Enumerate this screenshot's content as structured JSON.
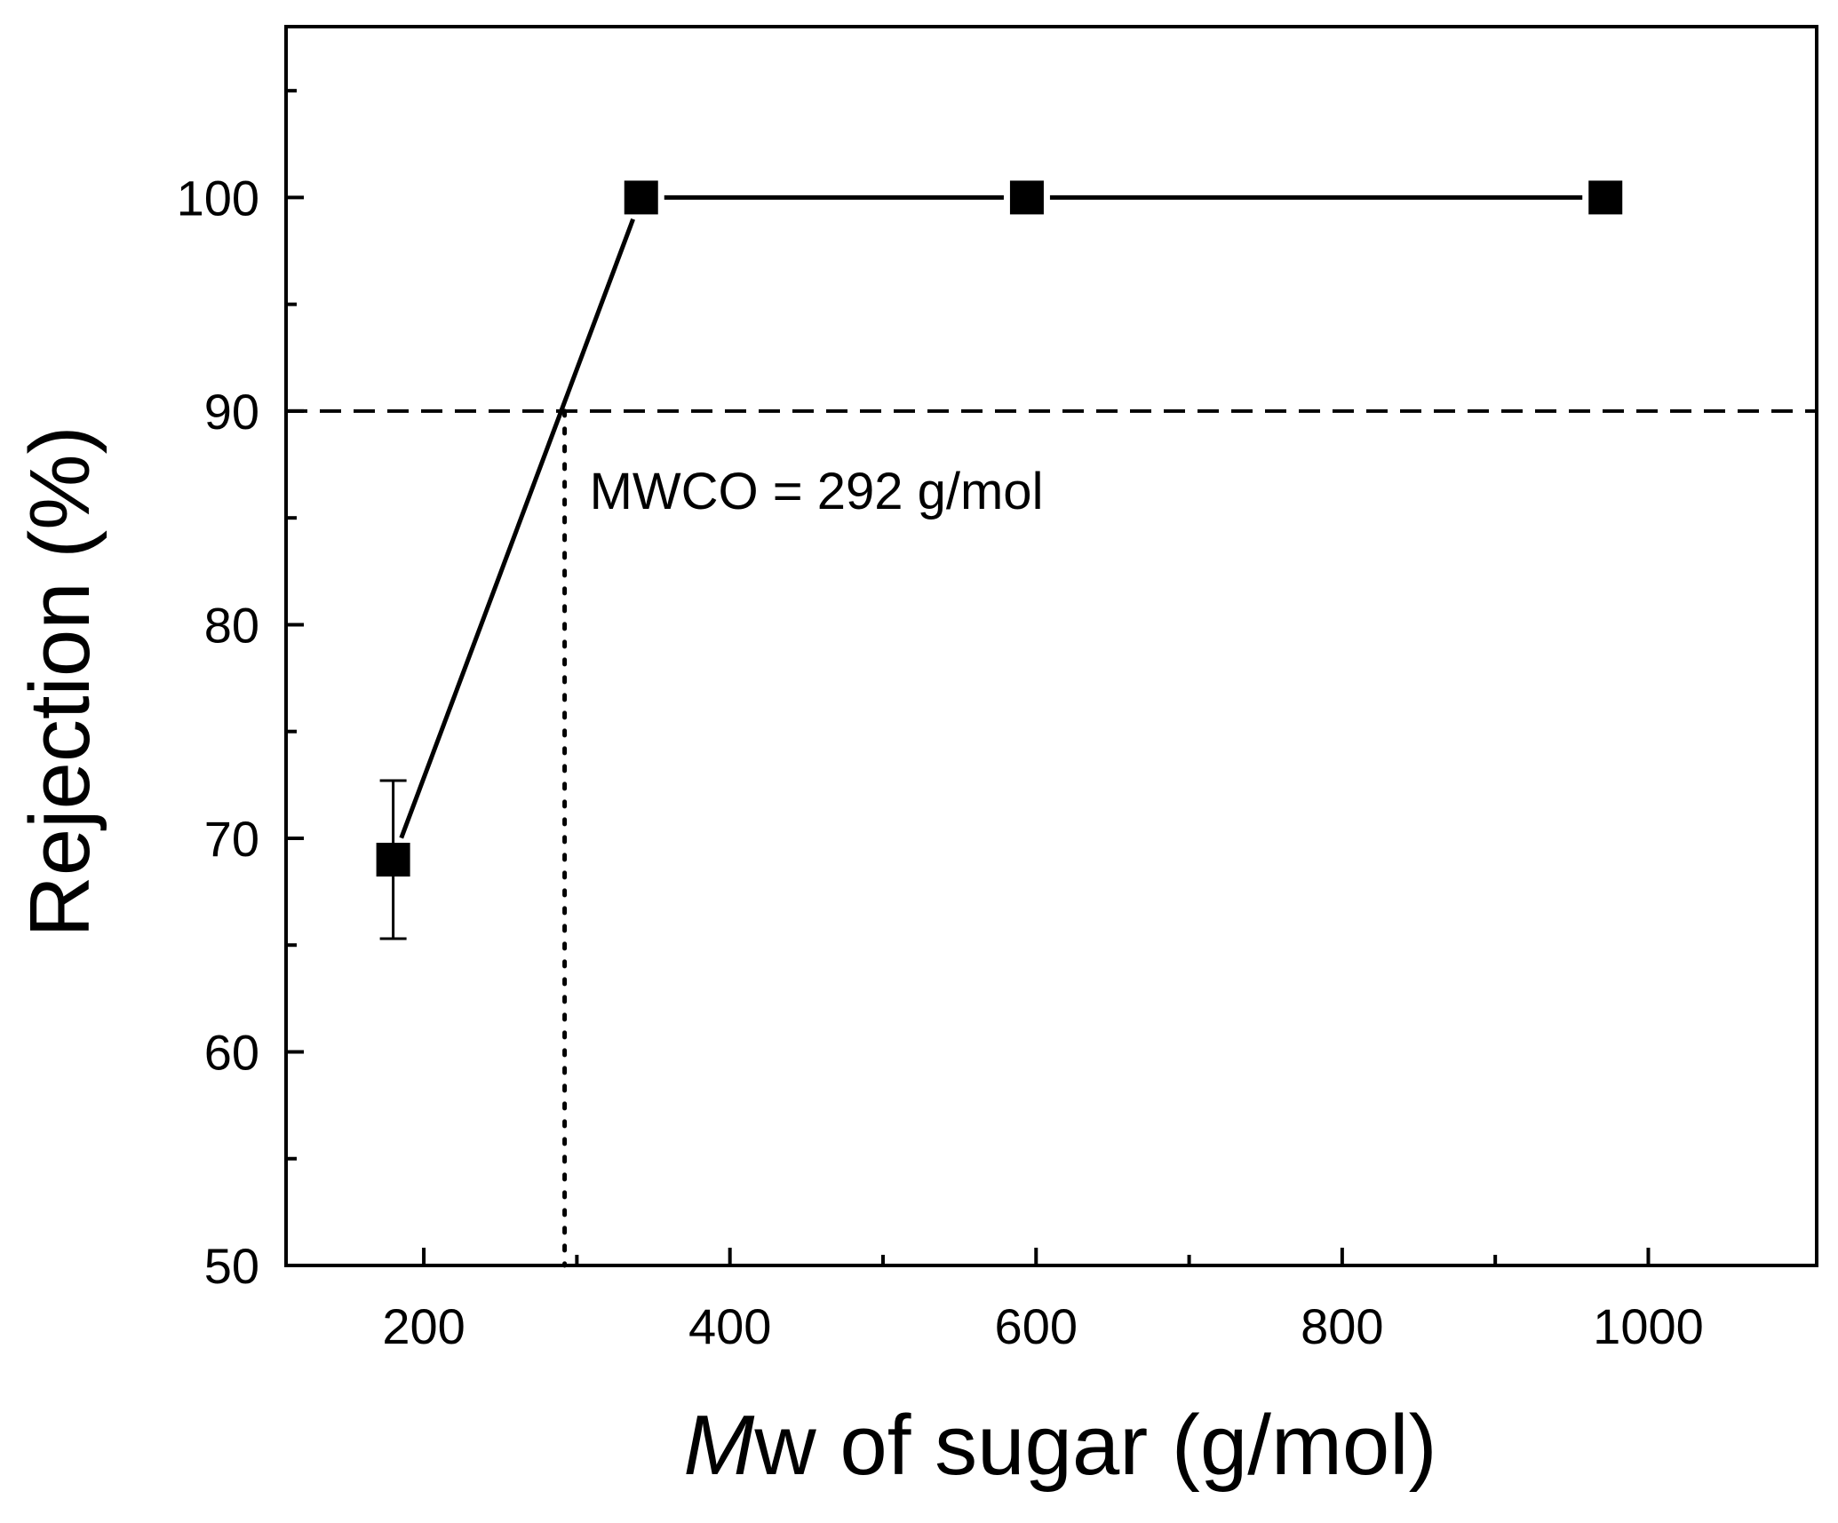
{
  "chart_data": {
    "type": "line",
    "title": "",
    "xlabel_italic": "M",
    "xlabel_rest": "w of sugar (g/mol)",
    "ylabel": "Rejection (%)",
    "xlim": [
      110,
      1110
    ],
    "ylim": [
      50,
      108
    ],
    "xticks": [
      200,
      400,
      600,
      800,
      1000
    ],
    "xminor": [
      300,
      500,
      700,
      900
    ],
    "yticks": [
      50,
      60,
      70,
      80,
      90,
      100
    ],
    "yminor": [
      55,
      65,
      75,
      85,
      95,
      105
    ],
    "grid": false,
    "series": [
      {
        "name": "Rejection",
        "marker": "square",
        "x": [
          180,
          342,
          594,
          972
        ],
        "y": [
          69,
          100,
          100,
          100
        ],
        "yerr": [
          3.7,
          0,
          0,
          0
        ]
      }
    ],
    "reference_line": {
      "y": 90,
      "style": "dashed"
    },
    "cutoff_line": {
      "x": 292,
      "style": "dotted"
    },
    "annotation": "MWCO = 292 g/mol"
  }
}
